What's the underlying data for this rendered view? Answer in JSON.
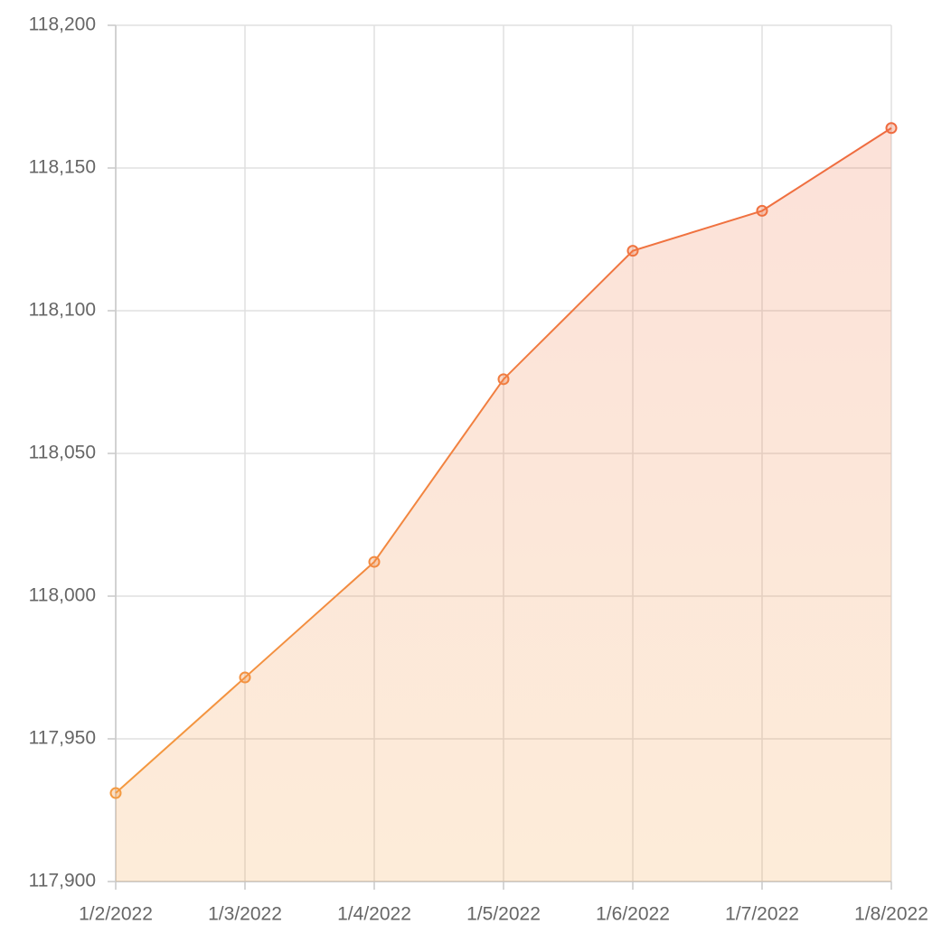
{
  "chart_data": {
    "type": "area",
    "categories": [
      "1/2/2022",
      "1/3/2022",
      "1/4/2022",
      "1/5/2022",
      "1/6/2022",
      "1/7/2022",
      "1/8/2022"
    ],
    "values": [
      117931,
      117971.5,
      118012,
      118076,
      118121,
      118135,
      118164
    ],
    "ylim": [
      117900,
      118200
    ],
    "yticks": [
      {
        "value": 117900,
        "label": "117,900"
      },
      {
        "value": 117950,
        "label": "117,950"
      },
      {
        "value": 118000,
        "label": "118,000"
      },
      {
        "value": 118050,
        "label": "118,050"
      },
      {
        "value": 118100,
        "label": "118,100"
      },
      {
        "value": 118150,
        "label": "118,150"
      },
      {
        "value": 118200,
        "label": "118,200"
      }
    ],
    "grid": true,
    "colors": [
      "#f5a040",
      "#ee6440"
    ]
  }
}
